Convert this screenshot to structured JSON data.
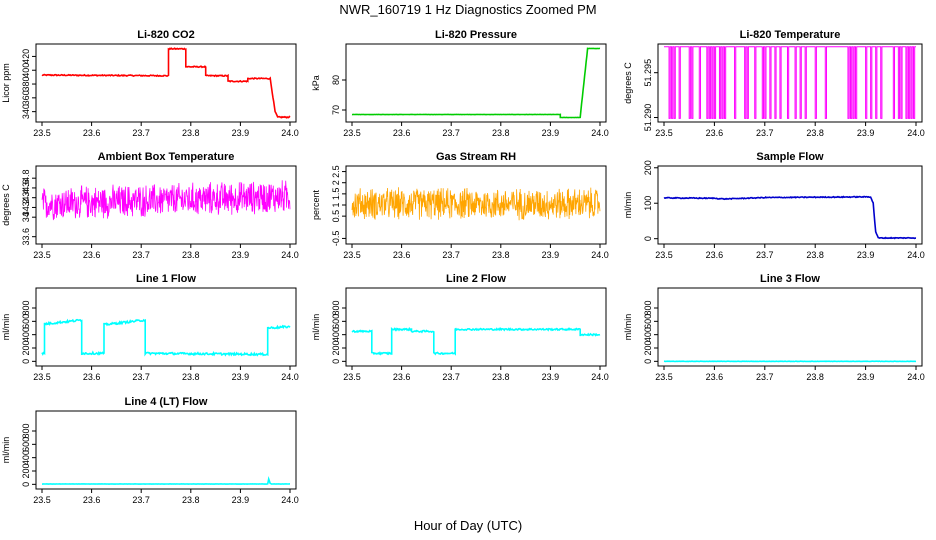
{
  "figure": {
    "title": "NWR_160719  1 Hz Diagnostics Zoomed PM",
    "xlabel": "Hour of Day (UTC)"
  },
  "chart_data": [
    {
      "id": "co2",
      "type": "line",
      "title": "Li-820 CO2",
      "ylabel": "Licor ppm",
      "color": "#ff0000",
      "xlim": [
        23.5,
        24.0
      ],
      "ylim": [
        325,
        438
      ],
      "yticks": [
        340,
        360,
        380,
        400,
        420
      ],
      "noise": 0.8,
      "x": [
        23.5,
        23.755,
        23.755,
        23.79,
        23.79,
        23.83,
        23.83,
        23.875,
        23.875,
        23.915,
        23.915,
        23.96,
        23.97,
        23.975,
        24.0
      ],
      "y": [
        393,
        392,
        431,
        431,
        405,
        405,
        392,
        392,
        384,
        384,
        388,
        388,
        340,
        332,
        332
      ]
    },
    {
      "id": "pressure",
      "type": "line",
      "title": "Li-820 Pressure",
      "ylabel": "kPa",
      "color": "#00cc00",
      "xlim": [
        23.5,
        24.0
      ],
      "ylim": [
        66,
        92
      ],
      "yticks": [
        70,
        80
      ],
      "noise": 0.05,
      "x": [
        23.5,
        23.92,
        23.92,
        23.96,
        23.975,
        24.0
      ],
      "y": [
        68.5,
        68.5,
        67.5,
        67.5,
        90.5,
        90.5
      ]
    },
    {
      "id": "licor-temp",
      "type": "line",
      "title": "Li-820 Temperature",
      "ylabel": "degrees C",
      "color": "#ff00ff",
      "xlim": [
        23.5,
        24.0
      ],
      "ylim": [
        51.2895,
        51.2982
      ],
      "yticks": [
        51.29,
        51.295
      ],
      "yticklabels": [
        "51.290",
        "51.295"
      ],
      "binary": {
        "high": 51.2979,
        "low": 51.2899
      },
      "drops": [
        23.51,
        23.515,
        23.52,
        23.53,
        23.55,
        23.555,
        23.57,
        23.585,
        23.59,
        23.595,
        23.6,
        23.61,
        23.615,
        23.62,
        23.64,
        23.66,
        23.665,
        23.68,
        23.695,
        23.7,
        23.71,
        23.72,
        23.73,
        23.745,
        23.76,
        23.77,
        23.78,
        23.8,
        23.82,
        23.865,
        23.87,
        23.875,
        23.88,
        23.9,
        23.91,
        23.92,
        23.93,
        23.955,
        23.965,
        23.97,
        23.98,
        23.985,
        23.99,
        23.995
      ]
    },
    {
      "id": "ambient-temp",
      "type": "line",
      "title": "Ambient Box Temperature",
      "ylabel": "degrees C",
      "color": "#ff00ff",
      "xlim": [
        23.5,
        24.0
      ],
      "ylim": [
        33.45,
        35.05
      ],
      "yticks": [
        33.6,
        34.0,
        34.2,
        34.4,
        34.6,
        34.8
      ],
      "noise_band": {
        "center": 34.35,
        "amp": 0.38,
        "slope": 0.15,
        "points": 700
      }
    },
    {
      "id": "gas-rh",
      "type": "line",
      "title": "Gas Stream RH",
      "ylabel": "percent",
      "color": "#ffa500",
      "xlim": [
        23.5,
        24.0
      ],
      "ylim": [
        -0.75,
        2.75
      ],
      "yticks": [
        -0.5,
        0.5,
        1.0,
        1.5,
        2.0,
        2.5
      ],
      "noise_band": {
        "center": 1.05,
        "amp": 0.8,
        "slope": 0,
        "points": 700
      }
    },
    {
      "id": "sample-flow",
      "type": "line",
      "title": "Sample Flow",
      "ylabel": "ml/min",
      "color": "#0000cc",
      "xlim": [
        23.5,
        24.0
      ],
      "ylim": [
        -15,
        205
      ],
      "yticks": [
        0,
        100,
        200
      ],
      "noise": 1.2,
      "x": [
        23.5,
        23.6,
        23.62,
        23.7,
        23.91,
        23.915,
        23.92,
        23.925,
        24.0
      ],
      "y": [
        115,
        114,
        112,
        116,
        118,
        100,
        20,
        2,
        2
      ]
    },
    {
      "id": "line1-flow",
      "type": "line",
      "title": "Line 1 Flow",
      "ylabel": "ml/min",
      "color": "#00ffff",
      "xlim": [
        23.5,
        24.0
      ],
      "ylim": [
        -70,
        1100
      ],
      "yticks": [
        0,
        200,
        400,
        600,
        800
      ],
      "noise": 15,
      "x": [
        23.5,
        23.505,
        23.505,
        23.58,
        23.58,
        23.625,
        23.625,
        23.708,
        23.708,
        23.955,
        23.955,
        24.0
      ],
      "y": [
        120,
        120,
        560,
        620,
        120,
        120,
        550,
        620,
        120,
        105,
        500,
        520
      ]
    },
    {
      "id": "line2-flow",
      "type": "line",
      "title": "Line 2 Flow",
      "ylabel": "ml/min",
      "color": "#00ffff",
      "xlim": [
        23.5,
        24.0
      ],
      "ylim": [
        -70,
        1100
      ],
      "yticks": [
        0,
        200,
        400,
        600,
        800
      ],
      "noise": 12,
      "x": [
        23.5,
        23.54,
        23.54,
        23.58,
        23.58,
        23.62,
        23.62,
        23.665,
        23.665,
        23.708,
        23.708,
        23.96,
        23.96,
        24.0
      ],
      "y": [
        450,
        450,
        120,
        120,
        480,
        480,
        450,
        450,
        120,
        120,
        480,
        480,
        400,
        400
      ]
    },
    {
      "id": "line3-flow",
      "type": "line",
      "title": "Line 3 Flow",
      "ylabel": "ml/min",
      "color": "#00ffff",
      "xlim": [
        23.5,
        24.0
      ],
      "ylim": [
        -70,
        1100
      ],
      "yticks": [
        0,
        200,
        400,
        600,
        800
      ],
      "noise": 2,
      "x": [
        23.5,
        24.0
      ],
      "y": [
        0,
        0
      ]
    },
    {
      "id": "line4-flow",
      "type": "line",
      "title": "Line 4 (LT) Flow",
      "ylabel": "ml/min",
      "color": "#00ffff",
      "xlim": [
        23.5,
        24.0
      ],
      "ylim": [
        -70,
        1100
      ],
      "yticks": [
        0,
        200,
        400,
        600,
        800
      ],
      "noise": 2,
      "x": [
        23.5,
        23.955,
        23.957,
        23.96,
        23.963,
        24.0
      ],
      "y": [
        5,
        5,
        80,
        15,
        5,
        5
      ]
    }
  ],
  "shared_axis": {
    "xticks": [
      23.5,
      23.6,
      23.7,
      23.8,
      23.9,
      24.0
    ],
    "xticklabels": [
      "23.5",
      "23.6",
      "23.7",
      "23.8",
      "23.9",
      "24.0"
    ]
  }
}
